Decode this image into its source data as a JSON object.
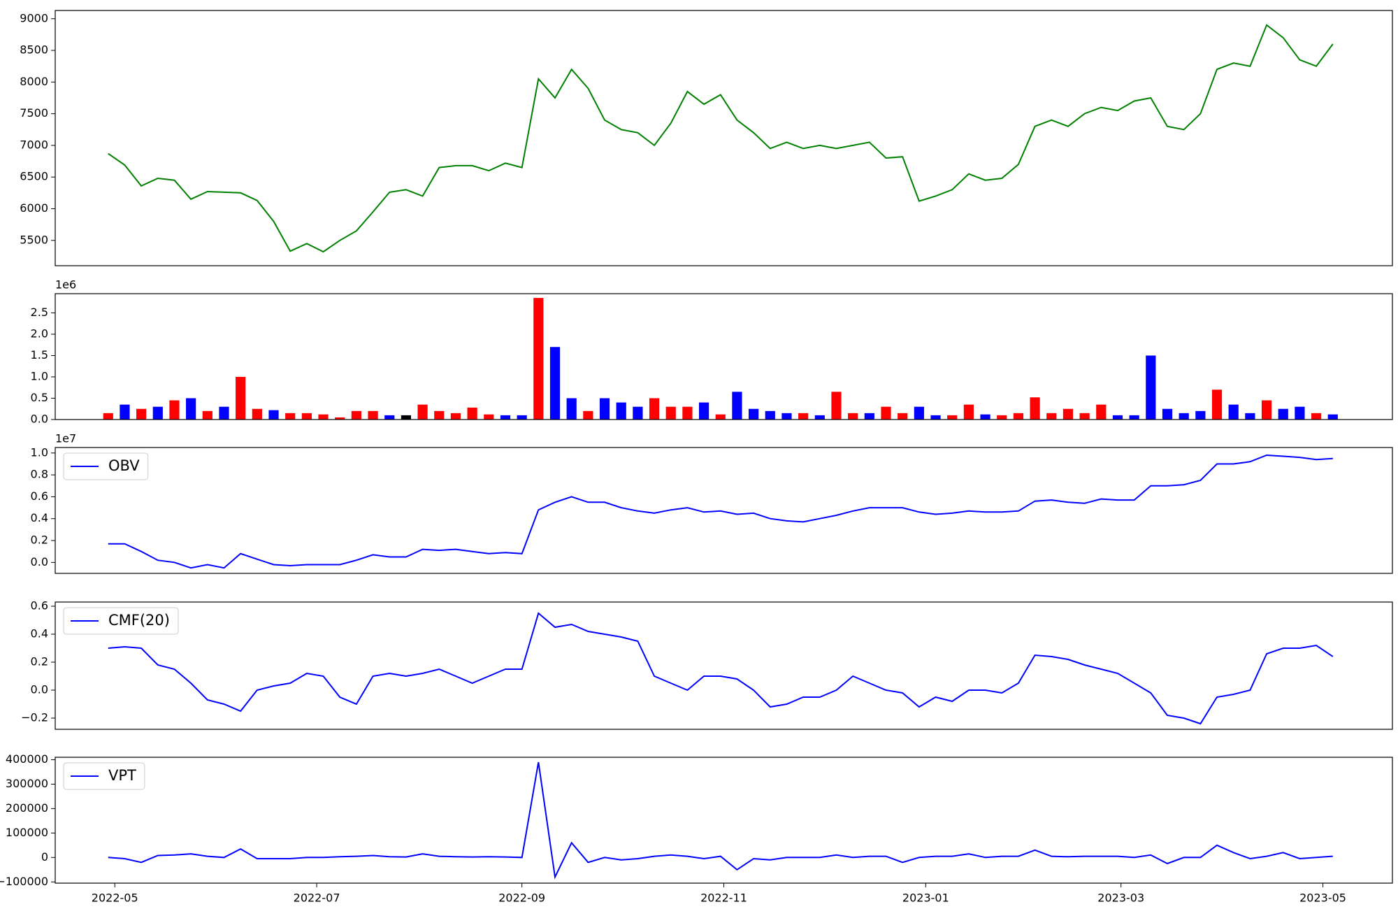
{
  "chart_data": [
    {
      "type": "line",
      "color": "green",
      "x": [
        -2,
        3,
        8,
        13,
        18,
        23,
        28,
        33,
        38,
        43,
        48,
        53,
        58,
        63,
        68,
        73,
        78,
        83,
        88,
        93,
        98,
        103,
        108,
        113,
        118,
        123,
        128,
        133,
        138,
        143,
        148,
        153,
        158,
        163,
        168,
        173,
        178,
        183,
        188,
        193,
        198,
        203,
        208,
        213,
        218,
        223,
        228,
        233,
        238,
        243,
        248,
        253,
        258,
        263,
        268,
        273,
        278,
        283,
        288,
        293,
        298,
        303,
        308,
        313,
        318,
        323,
        328,
        333,
        338,
        343,
        348,
        353,
        358,
        363,
        368
      ],
      "values": [
        6870,
        6690,
        6360,
        6480,
        6450,
        6150,
        6270,
        6260,
        6250,
        6130,
        5800,
        5330,
        5450,
        5320,
        5500,
        5650,
        5950,
        6260,
        6300,
        6200,
        6650,
        6680,
        6680,
        6600,
        6720,
        6650,
        8050,
        7750,
        8200,
        7900,
        7400,
        7250,
        7200,
        7000,
        7350,
        7850,
        7650,
        7800,
        7400,
        7200,
        6950,
        7050,
        6950,
        7000,
        6950,
        7000,
        7050,
        6800,
        6820,
        6120,
        6200,
        6300,
        6550,
        6450,
        6480,
        6700,
        7300,
        7400,
        7300,
        7500,
        7600,
        7550,
        7700,
        7750,
        7300,
        7250,
        7500,
        8200,
        8300,
        8250,
        8900,
        8700,
        8350,
        8250,
        8600
      ],
      "xlim": [
        -18,
        386
      ],
      "ylim": [
        5100,
        9130
      ],
      "yticks": [
        5500,
        6000,
        6500,
        7000,
        7500,
        8000,
        8500,
        9000
      ]
    },
    {
      "type": "bar",
      "offset_label": "1e6",
      "x": [
        -2,
        3,
        8,
        13,
        18,
        23,
        28,
        33,
        38,
        43,
        48,
        53,
        58,
        63,
        68,
        73,
        78,
        83,
        88,
        93,
        98,
        103,
        108,
        113,
        118,
        123,
        128,
        133,
        138,
        143,
        148,
        153,
        158,
        163,
        168,
        173,
        178,
        183,
        188,
        193,
        198,
        203,
        208,
        213,
        218,
        223,
        228,
        233,
        238,
        243,
        248,
        253,
        258,
        263,
        268,
        273,
        278,
        283,
        288,
        293,
        298,
        303,
        308,
        313,
        318,
        323,
        328,
        333,
        338,
        343,
        348,
        353,
        358,
        363,
        368
      ],
      "values": [
        0.15,
        0.35,
        0.25,
        0.3,
        0.45,
        0.5,
        0.2,
        0.3,
        1.0,
        0.25,
        0.22,
        0.15,
        0.15,
        0.12,
        0.05,
        0.2,
        0.2,
        0.1,
        0.1,
        0.35,
        0.2,
        0.15,
        0.28,
        0.12,
        0.1,
        0.1,
        2.85,
        1.7,
        0.5,
        0.2,
        0.5,
        0.4,
        0.3,
        0.5,
        0.3,
        0.3,
        0.4,
        0.12,
        0.65,
        0.25,
        0.2,
        0.15,
        0.15,
        0.1,
        0.65,
        0.15,
        0.15,
        0.3,
        0.15,
        0.3,
        0.1,
        0.1,
        0.35,
        0.12,
        0.1,
        0.15,
        0.52,
        0.15,
        0.25,
        0.15,
        0.35,
        0.1,
        0.1,
        1.5,
        0.25,
        0.15,
        0.2,
        0.7,
        0.35,
        0.15,
        0.45,
        0.25,
        0.3,
        0.15,
        0.12
      ],
      "colors": [
        "red",
        "blue",
        "red",
        "blue",
        "red",
        "blue",
        "red",
        "blue",
        "red",
        "red",
        "blue",
        "red",
        "red",
        "red",
        "red",
        "red",
        "red",
        "blue",
        "black",
        "red",
        "red",
        "red",
        "red",
        "red",
        "blue",
        "blue",
        "red",
        "blue",
        "blue",
        "red",
        "blue",
        "blue",
        "blue",
        "red",
        "red",
        "red",
        "blue",
        "red",
        "blue",
        "blue",
        "blue",
        "blue",
        "red",
        "blue",
        "red",
        "red",
        "blue",
        "red",
        "red",
        "blue",
        "blue",
        "red",
        "red",
        "blue",
        "red",
        "red",
        "red",
        "red",
        "red",
        "red",
        "red",
        "blue",
        "blue",
        "blue",
        "blue",
        "blue",
        "blue",
        "red",
        "blue",
        "blue",
        "red",
        "blue",
        "blue",
        "red",
        "blue"
      ],
      "xlim": [
        -18,
        386
      ],
      "ylim": [
        0,
        2.95
      ],
      "yticks": [
        {
          "value": 0,
          "label": "0.0"
        },
        0.5,
        {
          "value": 1,
          "label": "1.0"
        },
        1.5,
        {
          "value": 2,
          "label": "2.0"
        },
        2.5
      ]
    },
    {
      "type": "line",
      "offset_label": "1e7",
      "legend": "upper left",
      "x": [
        -2,
        3,
        8,
        13,
        18,
        23,
        28,
        33,
        38,
        43,
        48,
        53,
        58,
        63,
        68,
        73,
        78,
        83,
        88,
        93,
        98,
        103,
        108,
        113,
        118,
        123,
        128,
        133,
        138,
        143,
        148,
        153,
        158,
        163,
        168,
        173,
        178,
        183,
        188,
        193,
        198,
        203,
        208,
        213,
        218,
        223,
        228,
        233,
        238,
        243,
        248,
        253,
        258,
        263,
        268,
        273,
        278,
        283,
        288,
        293,
        298,
        303,
        308,
        313,
        318,
        323,
        328,
        333,
        338,
        343,
        348,
        353,
        358,
        363,
        368
      ],
      "series": [
        {
          "name": "OBV",
          "color": "blue",
          "values": [
            0.17,
            0.17,
            0.1,
            0.02,
            0.0,
            -0.05,
            -0.02,
            -0.05,
            0.08,
            0.03,
            -0.02,
            -0.03,
            -0.02,
            -0.02,
            -0.02,
            0.02,
            0.07,
            0.05,
            0.05,
            0.12,
            0.11,
            0.12,
            0.1,
            0.08,
            0.09,
            0.08,
            0.48,
            0.55,
            0.6,
            0.55,
            0.55,
            0.5,
            0.47,
            0.45,
            0.48,
            0.5,
            0.46,
            0.47,
            0.44,
            0.45,
            0.4,
            0.38,
            0.37,
            0.4,
            0.43,
            0.47,
            0.5,
            0.5,
            0.5,
            0.46,
            0.44,
            0.45,
            0.47,
            0.46,
            0.46,
            0.47,
            0.56,
            0.57,
            0.55,
            0.54,
            0.58,
            0.57,
            0.57,
            0.7,
            0.7,
            0.71,
            0.75,
            0.9,
            0.9,
            0.92,
            0.98,
            0.97,
            0.96,
            0.94,
            0.95
          ]
        }
      ],
      "xlim": [
        -18,
        386
      ],
      "ylim": [
        -0.1,
        1.05
      ],
      "yticks": [
        {
          "value": 0,
          "label": "0.0"
        },
        0.2,
        0.4,
        0.6,
        0.8,
        {
          "value": 1,
          "label": "1.0"
        }
      ]
    },
    {
      "type": "line",
      "legend": "upper left",
      "x": [
        -2,
        3,
        8,
        13,
        18,
        23,
        28,
        33,
        38,
        43,
        48,
        53,
        58,
        63,
        68,
        73,
        78,
        83,
        88,
        93,
        98,
        103,
        108,
        113,
        118,
        123,
        128,
        133,
        138,
        143,
        148,
        153,
        158,
        163,
        168,
        173,
        178,
        183,
        188,
        193,
        198,
        203,
        208,
        213,
        218,
        223,
        228,
        233,
        238,
        243,
        248,
        253,
        258,
        263,
        268,
        273,
        278,
        283,
        288,
        293,
        298,
        303,
        308,
        313,
        318,
        323,
        328,
        333,
        338,
        343,
        348,
        353,
        358,
        363,
        368
      ],
      "series": [
        {
          "name": "CMF(20)",
          "color": "blue",
          "values": [
            0.3,
            0.31,
            0.3,
            0.18,
            0.15,
            0.05,
            -0.07,
            -0.1,
            -0.15,
            0.0,
            0.03,
            0.05,
            0.12,
            0.1,
            -0.05,
            -0.1,
            0.1,
            0.12,
            0.1,
            0.12,
            0.15,
            0.1,
            0.05,
            0.1,
            0.15,
            0.15,
            0.55,
            0.45,
            0.47,
            0.42,
            0.4,
            0.38,
            0.35,
            0.1,
            0.05,
            0.0,
            0.1,
            0.1,
            0.08,
            0.0,
            -0.12,
            -0.1,
            -0.05,
            -0.05,
            0.0,
            0.1,
            0.05,
            0.0,
            -0.02,
            -0.12,
            -0.05,
            -0.08,
            0.0,
            0.0,
            -0.02,
            0.05,
            0.25,
            0.24,
            0.22,
            0.18,
            0.15,
            0.12,
            0.05,
            -0.02,
            -0.18,
            -0.2,
            -0.24,
            -0.05,
            -0.03,
            0.0,
            0.26,
            0.3,
            0.3,
            0.32,
            0.24
          ]
        }
      ],
      "xlim": [
        -18,
        386
      ],
      "ylim": [
        -0.28,
        0.63
      ],
      "yticks": [
        {
          "value": -0.2,
          "label": "−0.2"
        },
        {
          "value": 0,
          "label": "0.0"
        },
        0.2,
        0.4,
        0.6
      ]
    },
    {
      "type": "line",
      "legend": "upper left",
      "x": [
        -2,
        3,
        8,
        13,
        18,
        23,
        28,
        33,
        38,
        43,
        48,
        53,
        58,
        63,
        68,
        73,
        78,
        83,
        88,
        93,
        98,
        103,
        108,
        113,
        118,
        123,
        128,
        133,
        138,
        143,
        148,
        153,
        158,
        163,
        168,
        173,
        178,
        183,
        188,
        193,
        198,
        203,
        208,
        213,
        218,
        223,
        228,
        233,
        238,
        243,
        248,
        253,
        258,
        263,
        268,
        273,
        278,
        283,
        288,
        293,
        298,
        303,
        308,
        313,
        318,
        323,
        328,
        333,
        338,
        343,
        348,
        353,
        358,
        363,
        368
      ],
      "series": [
        {
          "name": "VPT",
          "color": "blue",
          "values": [
            0,
            -5000,
            -20000,
            8000,
            10000,
            15000,
            5000,
            0,
            35000,
            -5000,
            -5000,
            -5000,
            0,
            0,
            3000,
            5000,
            8000,
            3000,
            2000,
            15000,
            5000,
            3000,
            2000,
            3000,
            2000,
            0,
            390000,
            -80000,
            60000,
            -20000,
            0,
            -10000,
            -5000,
            5000,
            10000,
            5000,
            -5000,
            5000,
            -50000,
            -5000,
            -10000,
            0,
            0,
            0,
            10000,
            0,
            5000,
            5000,
            -20000,
            0,
            5000,
            5000,
            15000,
            0,
            5000,
            5000,
            30000,
            5000,
            3000,
            5000,
            5000,
            5000,
            0,
            10000,
            -25000,
            0,
            0,
            50000,
            20000,
            -5000,
            5000,
            20000,
            -5000,
            0,
            5000
          ]
        }
      ],
      "xlim": [
        -18,
        386
      ],
      "ylim": [
        -105000,
        410000
      ],
      "yticks": [
        {
          "value": -100000,
          "label": "−100000"
        },
        0,
        100000,
        200000,
        300000,
        400000
      ],
      "xticks": [
        {
          "value": 0,
          "label": "2022-05"
        },
        {
          "value": 61,
          "label": "2022-07"
        },
        {
          "value": 123,
          "label": "2022-09"
        },
        {
          "value": 184,
          "label": "2022-11"
        },
        {
          "value": 245,
          "label": "2023-01"
        },
        {
          "value": 304,
          "label": "2023-03"
        },
        {
          "value": 365,
          "label": "2023-05"
        }
      ]
    }
  ]
}
